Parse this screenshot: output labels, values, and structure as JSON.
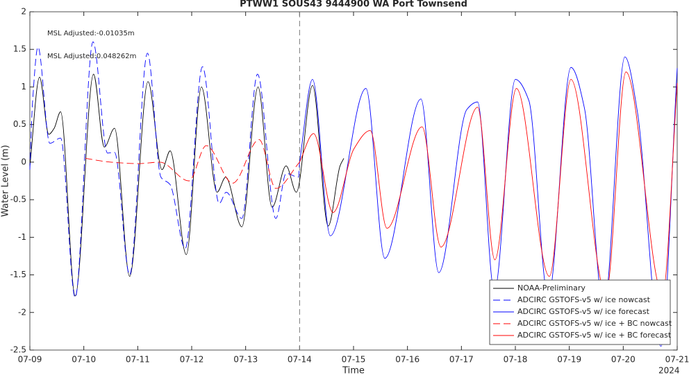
{
  "chart_data": {
    "type": "line",
    "title": "PTWW1 SOUS43 9444900 WA Port Townsend",
    "x_label": "Time",
    "y_label": "Water Level (m)",
    "x_year_label": "2024",
    "annotations": [
      {
        "text": "MSL Adjusted:-0.01035m",
        "color": "#0000ff"
      },
      {
        "text": "MSL Adjusted:0.048262m",
        "color": "#ff0000"
      }
    ],
    "vline": 5,
    "xlim": [
      0,
      12
    ],
    "xticks": [
      {
        "value": 0,
        "label": "07-09"
      },
      {
        "value": 1,
        "label": "07-10"
      },
      {
        "value": 2,
        "label": "07-11"
      },
      {
        "value": 3,
        "label": "07-12"
      },
      {
        "value": 4,
        "label": "07-13"
      },
      {
        "value": 5,
        "label": "07-14"
      },
      {
        "value": 6,
        "label": "07-15"
      },
      {
        "value": 7,
        "label": "07-16"
      },
      {
        "value": 8,
        "label": "07-17"
      },
      {
        "value": 9,
        "label": "07-18"
      },
      {
        "value": 10,
        "label": "07-19"
      },
      {
        "value": 11,
        "label": "07-20"
      },
      {
        "value": 12,
        "label": "07-21"
      }
    ],
    "ylim": [
      -2.5,
      2
    ],
    "yticks": [
      -2.5,
      -2,
      -1.5,
      -1,
      -0.5,
      0,
      0.5,
      1,
      1.5,
      2
    ],
    "grid": false,
    "legend": "lower right",
    "series": [
      {
        "name": "NOAA-Preliminary",
        "color": "#000000",
        "dash": false,
        "x": [
          0,
          0.18,
          0.35,
          0.45,
          0.57,
          0.84,
          1.18,
          1.38,
          1.57,
          1.85,
          2.19,
          2.45,
          2.6,
          2.9,
          3.18,
          3.47,
          3.63,
          3.93,
          4.23,
          4.49,
          4.75,
          4.94,
          5.24,
          5.53,
          5.75,
          5.82
        ],
        "values": [
          -0.05,
          1.13,
          0.37,
          0.45,
          0.67,
          -1.78,
          1.17,
          0.2,
          0.45,
          -1.52,
          1.07,
          -0.1,
          0.15,
          -1.23,
          1.0,
          -0.4,
          -0.2,
          -0.86,
          1.0,
          -0.6,
          -0.05,
          -0.4,
          1.02,
          -0.85,
          -0.05,
          0.05
        ]
      },
      {
        "name": "ADCIRC GSTOFS-v5 w/ ice nowcast",
        "color": "#0000ff",
        "dash": true,
        "x": [
          0,
          0.05,
          0.15,
          0.37,
          0.57,
          0.84,
          1.17,
          1.44,
          1.57,
          1.85,
          2.18,
          2.43,
          2.6,
          2.88,
          3.2,
          3.51,
          3.64,
          3.93,
          4.22,
          4.56,
          4.75,
          4.98,
          5.0
        ],
        "values": [
          -0.1,
          0.8,
          1.53,
          0.25,
          0.32,
          -1.8,
          1.6,
          0.12,
          0.13,
          -1.5,
          1.45,
          -0.2,
          -0.3,
          -1.15,
          1.27,
          -0.55,
          -0.4,
          -0.75,
          1.17,
          -0.75,
          -0.15,
          -0.2,
          0.0
        ]
      },
      {
        "name": "ADCIRC GSTOFS-v5 w/ ice forecast",
        "color": "#0000ff",
        "dash": false,
        "x": [
          5.0,
          5.24,
          5.57,
          6.23,
          6.58,
          7.25,
          7.58,
          8.1,
          8.3,
          8.61,
          9.0,
          9.25,
          9.61,
          10.03,
          10.28,
          10.64,
          11.03,
          11.26,
          11.7,
          12.0
        ],
        "values": [
          0.0,
          1.1,
          -0.98,
          0.98,
          -1.28,
          0.84,
          -1.47,
          0.7,
          0.8,
          -1.72,
          1.1,
          0.82,
          -1.8,
          1.26,
          0.72,
          -1.95,
          1.4,
          0.68,
          -2.45,
          1.25
        ]
      },
      {
        "name": "ADCIRC GSTOFS-v5 w/ ice + BC nowcast",
        "color": "#ff0000",
        "dash": true,
        "x": [
          1.03,
          1.5,
          2.02,
          2.41,
          2.95,
          3.27,
          3.76,
          4.25,
          4.56,
          5.0
        ],
        "values": [
          0.05,
          0.0,
          -0.02,
          0.0,
          -0.25,
          0.22,
          -0.28,
          0.3,
          -0.35,
          0.0
        ]
      },
      {
        "name": "ADCIRC GSTOFS-v5 w/ ice + BC forecast",
        "color": "#ff0000",
        "dash": false,
        "x": [
          5.0,
          5.26,
          5.62,
          6.01,
          6.31,
          6.62,
          7.27,
          7.62,
          8.3,
          8.62,
          9.02,
          9.63,
          10.03,
          10.68,
          11.05,
          11.73,
          12.0
        ],
        "values": [
          0.0,
          0.38,
          -0.67,
          0.18,
          0.42,
          -0.88,
          0.47,
          -1.13,
          0.73,
          -1.3,
          0.98,
          -1.52,
          1.1,
          -1.75,
          1.2,
          -1.75,
          1.05
        ]
      }
    ]
  }
}
